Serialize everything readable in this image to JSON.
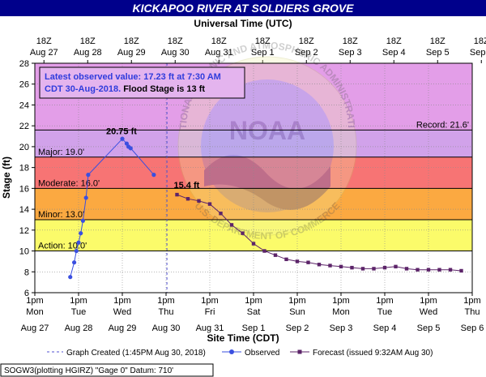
{
  "title": "KICKAPOO RIVER AT SOLDIERS GROVE",
  "chart_data": {
    "type": "line",
    "top_axis_title": "Universal Time (UTC)",
    "xlabel": "Site Time (CDT)",
    "ylabel": "Stage (ft)",
    "ylim": [
      6,
      28
    ],
    "yticks": [
      6,
      8,
      10,
      12,
      14,
      16,
      18,
      20,
      22,
      24,
      26,
      28
    ],
    "grid": true,
    "bottom_ticks": [
      {
        "time": "1pm",
        "day": "Mon",
        "date": "Aug 27"
      },
      {
        "time": "1pm",
        "day": "Tue",
        "date": "Aug 28"
      },
      {
        "time": "1pm",
        "day": "Wed",
        "date": "Aug 29"
      },
      {
        "time": "1pm",
        "day": "Thu",
        "date": "Aug 30"
      },
      {
        "time": "1pm",
        "day": "Fri",
        "date": "Aug 31"
      },
      {
        "time": "1pm",
        "day": "Sat",
        "date": "Sep 1"
      },
      {
        "time": "1pm",
        "day": "Sun",
        "date": "Sep 2"
      },
      {
        "time": "1pm",
        "day": "Mon",
        "date": "Sep 3"
      },
      {
        "time": "1pm",
        "day": "Tue",
        "date": "Sep 4"
      },
      {
        "time": "1pm",
        "day": "Wed",
        "date": "Sep 5"
      },
      {
        "time": "1pm",
        "day": "Thu",
        "date": "Sep 6"
      }
    ],
    "top_ticks": [
      {
        "time": "18Z",
        "date": "Aug 27"
      },
      {
        "time": "18Z",
        "date": "Aug 28"
      },
      {
        "time": "18Z",
        "date": "Aug 29"
      },
      {
        "time": "18Z",
        "date": "Aug 30"
      },
      {
        "time": "18Z",
        "date": "Aug 31"
      },
      {
        "time": "18Z",
        "date": "Sep 1"
      },
      {
        "time": "18Z",
        "date": "Sep 2"
      },
      {
        "time": "18Z",
        "date": "Sep 3"
      },
      {
        "time": "18Z",
        "date": "Sep 4"
      },
      {
        "time": "18Z",
        "date": "Sep 5"
      },
      {
        "time": "18Z",
        "date": "Sep 6"
      }
    ],
    "bands": [
      {
        "name": "Record",
        "label": "Record: 21.6'",
        "from": 21.6,
        "to": 28,
        "color": "#e39ee8"
      },
      {
        "name": "Major",
        "label": "Major: 19.0'",
        "from": 19,
        "to": 21.6,
        "color": "#d1a2ea"
      },
      {
        "name": "Moderate",
        "label": "Moderate: 16.0'",
        "from": 16,
        "to": 19,
        "color": "#f77474"
      },
      {
        "name": "Minor",
        "label": "Minor: 13.0'",
        "from": 13,
        "to": 16,
        "color": "#fba941"
      },
      {
        "name": "Action",
        "label": "Action: 10.0'",
        "from": 10,
        "to": 13,
        "color": "#fbfb6a"
      }
    ],
    "band_line_color": "#000000",
    "graph_created_day": 3.02,
    "series": [
      {
        "name": "Observed",
        "color": "#3a4fe0",
        "points": [
          [
            0.81,
            7.5
          ],
          [
            0.9,
            8.9
          ],
          [
            0.95,
            10.0
          ],
          [
            1.0,
            10.8
          ],
          [
            1.05,
            11.7
          ],
          [
            1.1,
            12.9
          ],
          [
            1.17,
            15.1
          ],
          [
            1.22,
            17.3
          ],
          [
            2.0,
            20.75
          ],
          [
            2.1,
            20.3
          ],
          [
            2.14,
            20.0
          ],
          [
            2.19,
            19.85
          ],
          [
            2.72,
            17.3
          ]
        ],
        "peak_label": "20.75 ft"
      },
      {
        "name": "Forecast (issued 9:32AM Aug 30)",
        "color": "#5c2469",
        "points": [
          [
            3.25,
            15.4
          ],
          [
            3.5,
            15.0
          ],
          [
            3.75,
            14.8
          ],
          [
            4.0,
            14.5
          ],
          [
            4.25,
            13.6
          ],
          [
            4.5,
            12.5
          ],
          [
            4.75,
            11.7
          ],
          [
            5.0,
            10.7
          ],
          [
            5.25,
            10.0
          ],
          [
            5.5,
            9.6
          ],
          [
            5.75,
            9.2
          ],
          [
            6.0,
            9.0
          ],
          [
            6.25,
            8.9
          ],
          [
            6.5,
            8.7
          ],
          [
            6.75,
            8.6
          ],
          [
            7.0,
            8.5
          ],
          [
            7.25,
            8.4
          ],
          [
            7.5,
            8.3
          ],
          [
            7.75,
            8.3
          ],
          [
            8.0,
            8.4
          ],
          [
            8.25,
            8.5
          ],
          [
            8.5,
            8.3
          ],
          [
            8.75,
            8.2
          ],
          [
            9.0,
            8.2
          ],
          [
            9.25,
            8.2
          ],
          [
            9.5,
            8.2
          ],
          [
            9.75,
            8.1
          ]
        ],
        "peak_label": "15.4 ft"
      }
    ],
    "infobox": {
      "line1": "Latest observed value: 17.23 ft at 7:30 AM",
      "line2_blue": "CDT 30-Aug-2018.",
      "line2_black": " Flood Stage is 13 ft"
    },
    "watermark": {
      "ring_top": "NATIONAL OCEANIC AND ATMOSPHERIC ADMINISTRATION",
      "ring_bottom": "U.S. DEPARTMENT OF COMMERCE",
      "center": "NOAA"
    },
    "legend": {
      "created": "Graph Created (1:45PM Aug 30, 2018)",
      "observed": "Observed",
      "forecast": "Forecast (issued 9:32AM Aug 30)"
    },
    "footer": "SOGW3(plotting HGIRZ) \"Gage 0\" Datum: 710'"
  }
}
